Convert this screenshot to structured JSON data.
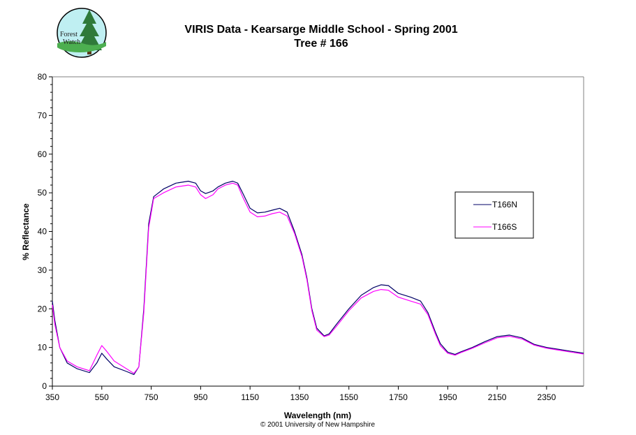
{
  "logo": {
    "line1": "Forest",
    "line2": "Watch"
  },
  "footer": "© 2001 University of New Hampshire",
  "chart_data": {
    "type": "line",
    "title": "VIRIS Data - Kearsarge Middle School - Spring 2001",
    "subtitle": "Tree # 166",
    "xlabel": "Wavelength (nm)",
    "ylabel": "% Reflectance",
    "xlim": [
      350,
      2500
    ],
    "ylim": [
      0,
      80
    ],
    "xticks": [
      350,
      550,
      750,
      950,
      1150,
      1350,
      1550,
      1750,
      1950,
      2150,
      2350
    ],
    "yticks": [
      0,
      10,
      20,
      30,
      40,
      50,
      60,
      70,
      80
    ],
    "grid": false,
    "legend": "right",
    "series": [
      {
        "name": "T166N",
        "color": "#000066",
        "points": [
          [
            350,
            22
          ],
          [
            360,
            17
          ],
          [
            380,
            10
          ],
          [
            410,
            6
          ],
          [
            450,
            4.5
          ],
          [
            500,
            3.5
          ],
          [
            530,
            6
          ],
          [
            550,
            8.5
          ],
          [
            570,
            7
          ],
          [
            600,
            5
          ],
          [
            650,
            3.8
          ],
          [
            680,
            3
          ],
          [
            700,
            5
          ],
          [
            720,
            20
          ],
          [
            740,
            42
          ],
          [
            760,
            49
          ],
          [
            800,
            51
          ],
          [
            850,
            52.5
          ],
          [
            900,
            53
          ],
          [
            930,
            52.5
          ],
          [
            950,
            50.5
          ],
          [
            970,
            49.8
          ],
          [
            1000,
            50.5
          ],
          [
            1020,
            51.5
          ],
          [
            1050,
            52.5
          ],
          [
            1080,
            53
          ],
          [
            1100,
            52.5
          ],
          [
            1120,
            50
          ],
          [
            1150,
            46
          ],
          [
            1180,
            44.8
          ],
          [
            1210,
            45
          ],
          [
            1240,
            45.5
          ],
          [
            1270,
            46
          ],
          [
            1300,
            45
          ],
          [
            1330,
            40
          ],
          [
            1360,
            34
          ],
          [
            1380,
            28
          ],
          [
            1400,
            20
          ],
          [
            1420,
            15
          ],
          [
            1450,
            13
          ],
          [
            1470,
            13.5
          ],
          [
            1500,
            16
          ],
          [
            1550,
            20
          ],
          [
            1600,
            23.5
          ],
          [
            1650,
            25.5
          ],
          [
            1680,
            26.2
          ],
          [
            1710,
            26
          ],
          [
            1750,
            24
          ],
          [
            1800,
            23
          ],
          [
            1840,
            22
          ],
          [
            1870,
            19
          ],
          [
            1900,
            14
          ],
          [
            1920,
            11
          ],
          [
            1950,
            8.8
          ],
          [
            1980,
            8.2
          ],
          [
            2000,
            8.8
          ],
          [
            2050,
            10
          ],
          [
            2100,
            11.5
          ],
          [
            2150,
            12.8
          ],
          [
            2200,
            13.2
          ],
          [
            2250,
            12.5
          ],
          [
            2300,
            10.8
          ],
          [
            2350,
            10
          ],
          [
            2400,
            9.5
          ],
          [
            2450,
            9
          ],
          [
            2500,
            8.5
          ]
        ]
      },
      {
        "name": "T166S",
        "color": "#ff00ff",
        "points": [
          [
            350,
            21
          ],
          [
            360,
            16
          ],
          [
            380,
            10
          ],
          [
            410,
            6.5
          ],
          [
            450,
            5
          ],
          [
            500,
            4
          ],
          [
            530,
            8
          ],
          [
            550,
            10.5
          ],
          [
            570,
            9
          ],
          [
            600,
            6.5
          ],
          [
            650,
            4.5
          ],
          [
            680,
            3.3
          ],
          [
            700,
            5
          ],
          [
            720,
            19
          ],
          [
            740,
            41
          ],
          [
            760,
            48.5
          ],
          [
            800,
            50
          ],
          [
            850,
            51.5
          ],
          [
            900,
            52
          ],
          [
            930,
            51.5
          ],
          [
            950,
            49.5
          ],
          [
            970,
            48.5
          ],
          [
            1000,
            49.5
          ],
          [
            1020,
            51
          ],
          [
            1050,
            52
          ],
          [
            1080,
            52.5
          ],
          [
            1100,
            52
          ],
          [
            1120,
            49
          ],
          [
            1150,
            45
          ],
          [
            1180,
            43.8
          ],
          [
            1210,
            44
          ],
          [
            1240,
            44.6
          ],
          [
            1270,
            45
          ],
          [
            1300,
            44
          ],
          [
            1330,
            39.5
          ],
          [
            1360,
            33.5
          ],
          [
            1380,
            27.5
          ],
          [
            1400,
            19.5
          ],
          [
            1420,
            14.5
          ],
          [
            1450,
            12.8
          ],
          [
            1470,
            13.2
          ],
          [
            1500,
            15.5
          ],
          [
            1550,
            19.5
          ],
          [
            1600,
            22.8
          ],
          [
            1650,
            24.5
          ],
          [
            1680,
            25
          ],
          [
            1710,
            24.8
          ],
          [
            1750,
            23
          ],
          [
            1800,
            22
          ],
          [
            1840,
            21.2
          ],
          [
            1870,
            18.5
          ],
          [
            1900,
            13.5
          ],
          [
            1920,
            10.5
          ],
          [
            1950,
            8.5
          ],
          [
            1980,
            8
          ],
          [
            2000,
            8.6
          ],
          [
            2050,
            9.8
          ],
          [
            2100,
            11.2
          ],
          [
            2150,
            12.5
          ],
          [
            2200,
            12.9
          ],
          [
            2250,
            12.2
          ],
          [
            2300,
            10.6
          ],
          [
            2350,
            9.8
          ],
          [
            2400,
            9.3
          ],
          [
            2450,
            8.8
          ],
          [
            2500,
            8.3
          ]
        ]
      }
    ]
  }
}
